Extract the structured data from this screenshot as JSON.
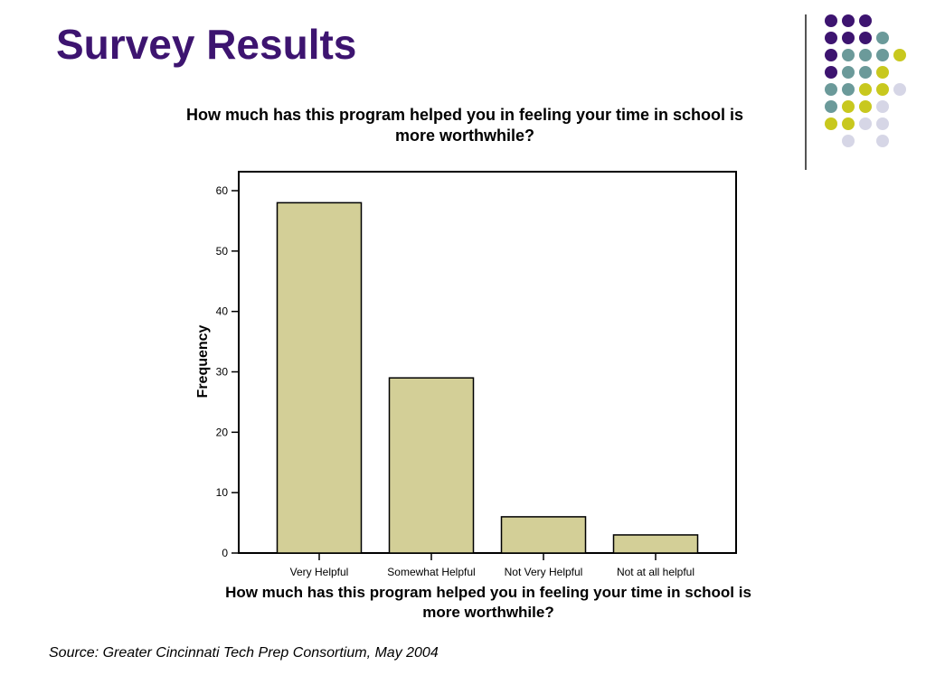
{
  "slide": {
    "title": "Survey Results",
    "source": "Source: Greater Cincinnati Tech Prep Consortium, May 2004"
  },
  "colors": {
    "title": "#3d1470",
    "bar_fill": "#d3cf97",
    "bar_stroke": "#000000",
    "dot_purple": "#3d1470",
    "dot_teal": "#6b9a9a",
    "dot_yellow": "#c8c81e",
    "dot_lavender": "#d6d6e6"
  },
  "chart_data": {
    "type": "bar",
    "title": "How much has this program helped you in feeling your time in school is more worthwhile?",
    "xlabel": "How much has this program helped you in feeling your time in school is more worthwhile?",
    "ylabel": "Frequency",
    "categories": [
      "Very Helpful",
      "Somewhat Helpful",
      "Not Very Helpful",
      "Not at all helpful"
    ],
    "values": [
      58,
      29,
      6,
      3
    ],
    "ylim": [
      0,
      60
    ],
    "yticks": [
      0,
      10,
      20,
      30,
      40,
      50,
      60
    ],
    "grid": false,
    "legend": "none"
  }
}
